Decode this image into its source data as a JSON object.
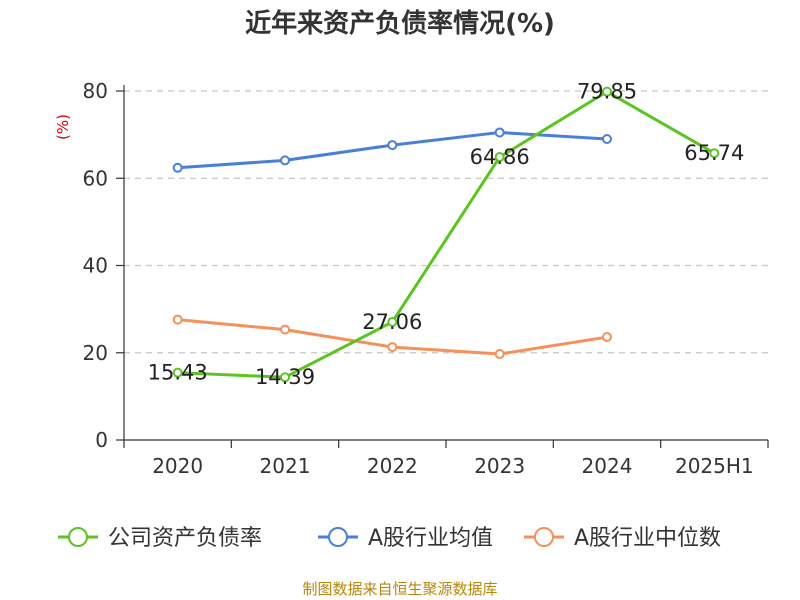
{
  "chart_data": {
    "type": "line",
    "title": "近年来资产负债率情况(%)",
    "ylabel": "(%)",
    "xlabel": "",
    "categories": [
      "2020",
      "2021",
      "2022",
      "2023",
      "2024",
      "2025H1"
    ],
    "ylim": [
      0,
      80
    ],
    "yticks": [
      0,
      20,
      40,
      60,
      80
    ],
    "grid": true,
    "legend_position": "bottom",
    "series": [
      {
        "name": "公司资产负债率",
        "color": "#5cc321",
        "values": [
          15.43,
          14.39,
          27.06,
          64.86,
          79.85,
          65.74
        ],
        "labels": [
          "15.43",
          "14.39",
          "27.06",
          "64.86",
          "79.85",
          "65.74"
        ]
      },
      {
        "name": "A股行业均值",
        "color": "#4a7fd8",
        "values": [
          62.4,
          64.1,
          67.6,
          70.5,
          69.0,
          null
        ]
      },
      {
        "name": "A股行业中位数",
        "color": "#f59058",
        "values": [
          27.6,
          25.3,
          21.3,
          19.7,
          23.6,
          null
        ]
      }
    ],
    "source": "制图数据来自恒生聚源数据库"
  }
}
